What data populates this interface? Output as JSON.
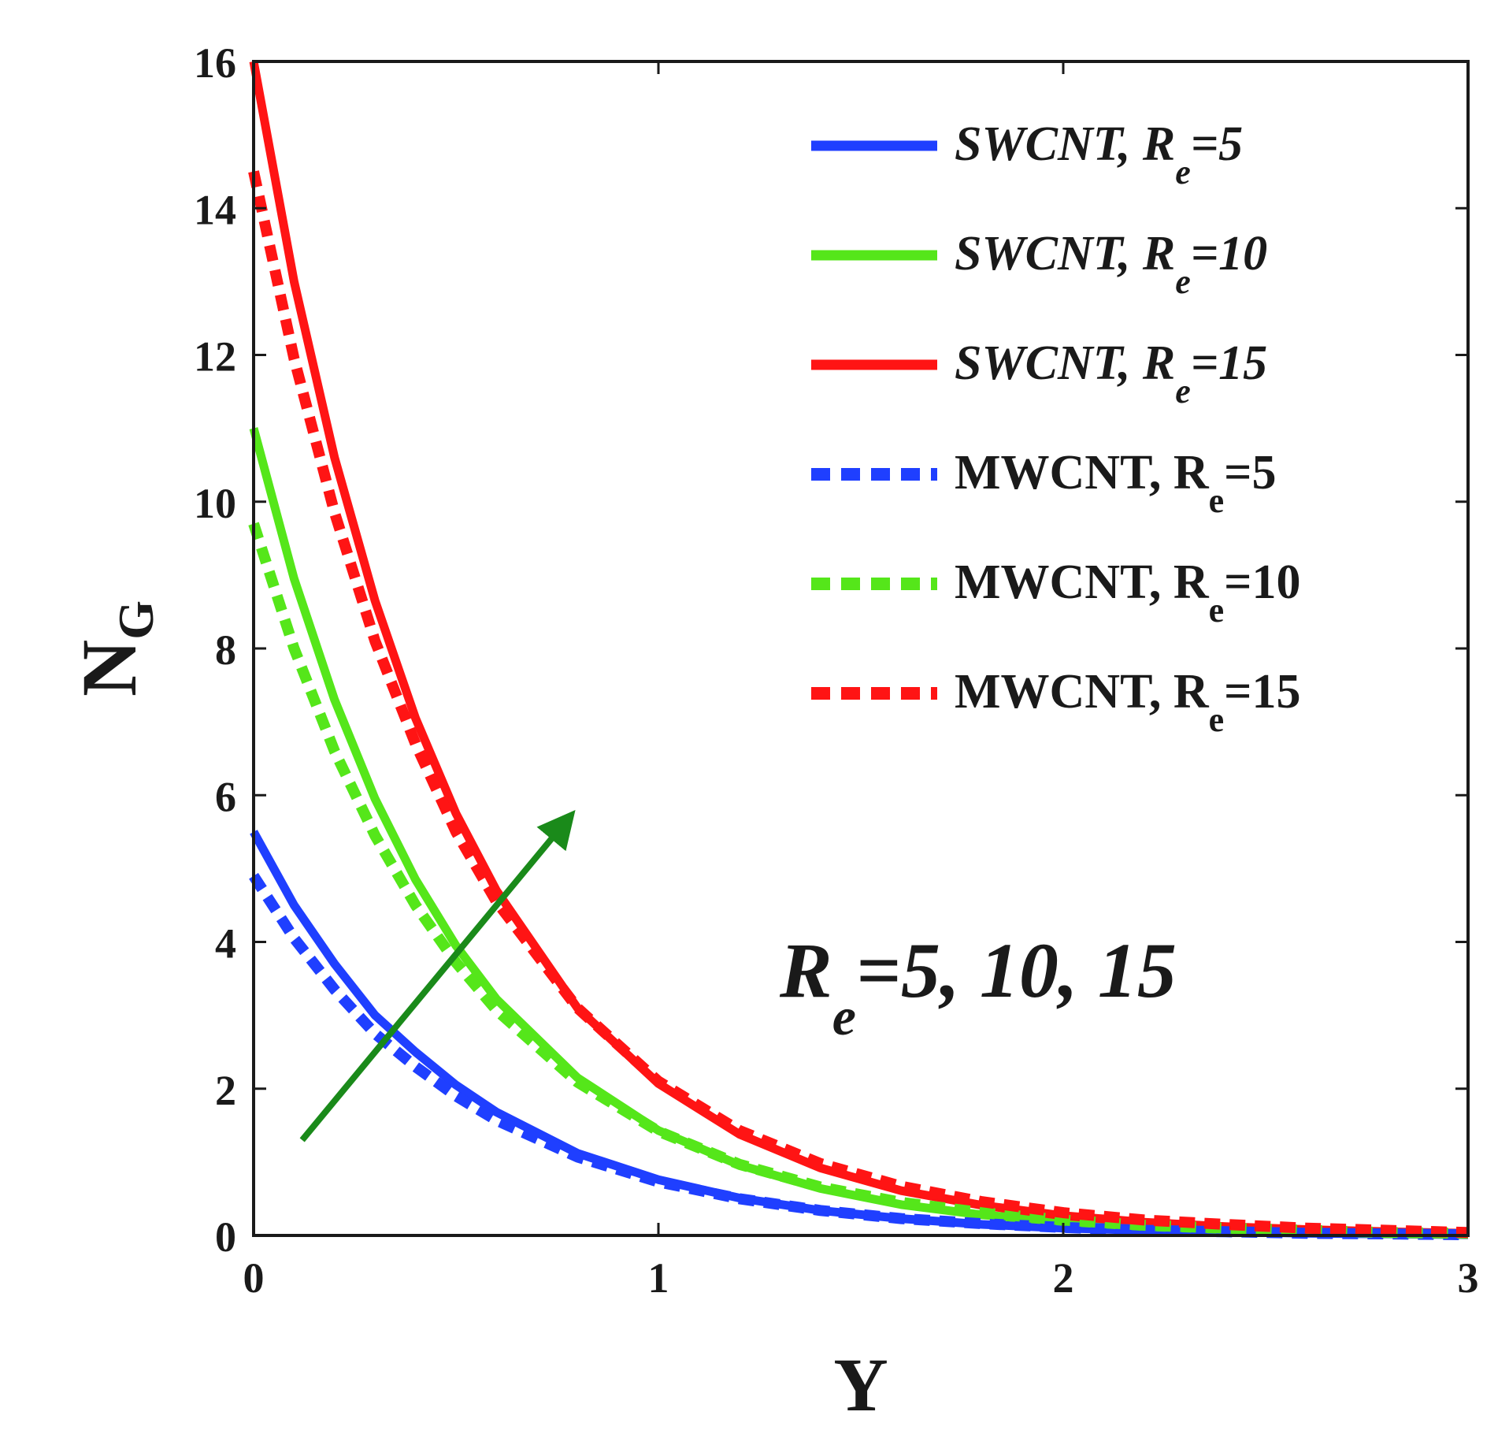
{
  "chart_data": {
    "type": "line",
    "title": "",
    "xlabel": "Υ",
    "ylabel": {
      "main": "N",
      "sub": "G"
    },
    "xlim": [
      0,
      3
    ],
    "ylim": [
      0,
      16
    ],
    "xticks": [
      0,
      1,
      2,
      3
    ],
    "xtick_labels": [
      "0",
      "1",
      "2",
      "3"
    ],
    "yticks": [
      0,
      2,
      4,
      6,
      8,
      10,
      12,
      14,
      16
    ],
    "ytick_labels": [
      "0",
      "2",
      "4",
      "6",
      "8",
      "10",
      "12",
      "14",
      "16"
    ],
    "grid": false,
    "legend_position": "top-right",
    "x": [
      0,
      0.1,
      0.2,
      0.3,
      0.4,
      0.5,
      0.6,
      0.8,
      1.0,
      1.2,
      1.4,
      1.6,
      1.8,
      2.0,
      2.2,
      2.4,
      2.6,
      2.8,
      3.0
    ],
    "series": [
      {
        "name": "SWCNT, Re=5",
        "label_main": "SWCNT, R",
        "label_sub": "e",
        "label_tail": "=5",
        "style": "solid",
        "color": "#1f3fff",
        "values": [
          5.5,
          4.5,
          3.7,
          3.0,
          2.5,
          2.05,
          1.68,
          1.12,
          0.76,
          0.51,
          0.34,
          0.23,
          0.15,
          0.1,
          0.07,
          0.05,
          0.03,
          0.02,
          0.01
        ]
      },
      {
        "name": "SWCNT, Re=10",
        "label_main": "SWCNT, R",
        "label_sub": "e",
        "label_tail": "=10",
        "style": "solid",
        "color": "#55e61a",
        "values": [
          11.0,
          8.95,
          7.3,
          5.95,
          4.85,
          3.95,
          3.22,
          2.15,
          1.43,
          0.96,
          0.64,
          0.42,
          0.28,
          0.19,
          0.12,
          0.08,
          0.05,
          0.03,
          0.02
        ]
      },
      {
        "name": "SWCNT, Re=15",
        "label_main": "SWCNT, R",
        "label_sub": "e",
        "label_tail": "=15",
        "style": "solid",
        "color": "#ff1414",
        "values": [
          16.0,
          13.0,
          10.6,
          8.65,
          7.05,
          5.75,
          4.7,
          3.1,
          2.07,
          1.38,
          0.92,
          0.61,
          0.41,
          0.27,
          0.18,
          0.12,
          0.08,
          0.05,
          0.03
        ]
      },
      {
        "name": "MWCNT, Re=5",
        "label_main": "MWCNT, R",
        "label_sub": "e",
        "label_tail": "=5",
        "style": "dashed",
        "color": "#1f3fff",
        "values": [
          4.9,
          4.05,
          3.35,
          2.75,
          2.3,
          1.9,
          1.57,
          1.07,
          0.73,
          0.5,
          0.34,
          0.23,
          0.16,
          0.11,
          0.07,
          0.05,
          0.03,
          0.02,
          0.01
        ]
      },
      {
        "name": "MWCNT, Re=10",
        "label_main": "MWCNT, R",
        "label_sub": "e",
        "label_tail": "=10",
        "style": "dashed",
        "color": "#55e61a",
        "values": [
          9.7,
          8.0,
          6.6,
          5.45,
          4.5,
          3.72,
          3.07,
          2.09,
          1.42,
          0.97,
          0.66,
          0.45,
          0.31,
          0.21,
          0.14,
          0.1,
          0.07,
          0.04,
          0.03
        ]
      },
      {
        "name": "MWCNT, Re=15",
        "label_main": "MWCNT, R",
        "label_sub": "e",
        "label_tail": "=15",
        "style": "dashed",
        "color": "#ff1414",
        "values": [
          14.5,
          11.95,
          9.85,
          8.1,
          6.7,
          5.5,
          4.55,
          3.1,
          2.1,
          1.43,
          0.98,
          0.67,
          0.46,
          0.31,
          0.21,
          0.15,
          0.1,
          0.07,
          0.04
        ]
      }
    ],
    "annotation": {
      "text_main": "R",
      "text_sub": "e",
      "text_tail": "=5, 10, 15",
      "arrow_from": [
        0.12,
        1.3
      ],
      "arrow_to": [
        0.78,
        5.7
      ],
      "arrow_color": "#1a8a1a"
    }
  }
}
